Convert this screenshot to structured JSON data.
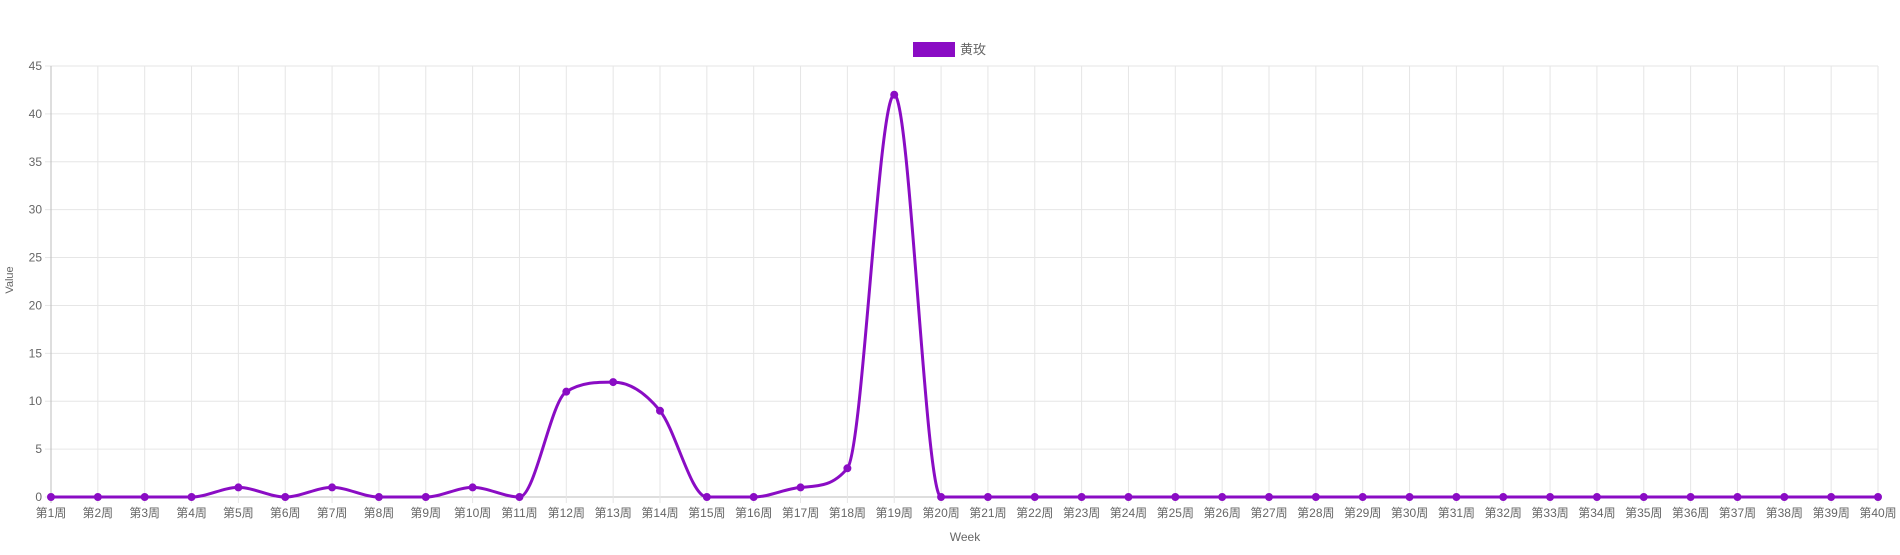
{
  "chart_data": {
    "type": "line",
    "xlabel": "Week",
    "ylabel": "Value",
    "ylim": [
      0,
      45
    ],
    "yticks": [
      0,
      5,
      10,
      15,
      20,
      25,
      30,
      35,
      40,
      45
    ],
    "grid": true,
    "legend_position": "top-center",
    "categories": [
      "第1周",
      "第2周",
      "第3周",
      "第4周",
      "第5周",
      "第6周",
      "第7周",
      "第8周",
      "第9周",
      "第10周",
      "第11周",
      "第12周",
      "第13周",
      "第14周",
      "第15周",
      "第16周",
      "第17周",
      "第18周",
      "第19周",
      "第20周",
      "第21周",
      "第22周",
      "第23周",
      "第24周",
      "第25周",
      "第26周",
      "第27周",
      "第28周",
      "第29周",
      "第30周",
      "第31周",
      "第32周",
      "第33周",
      "第34周",
      "第35周",
      "第36周",
      "第37周",
      "第38周",
      "第39周",
      "第40周"
    ],
    "series": [
      {
        "name": "黄玫",
        "color": "#8a0cc4",
        "values": [
          0,
          0,
          0,
          0,
          1,
          0,
          1,
          0,
          0,
          1,
          0,
          11,
          12,
          9,
          0,
          0,
          1,
          3,
          42,
          0,
          0,
          0,
          0,
          0,
          0,
          0,
          0,
          0,
          0,
          0,
          0,
          0,
          0,
          0,
          0,
          0,
          0,
          0,
          0,
          0
        ]
      }
    ]
  }
}
